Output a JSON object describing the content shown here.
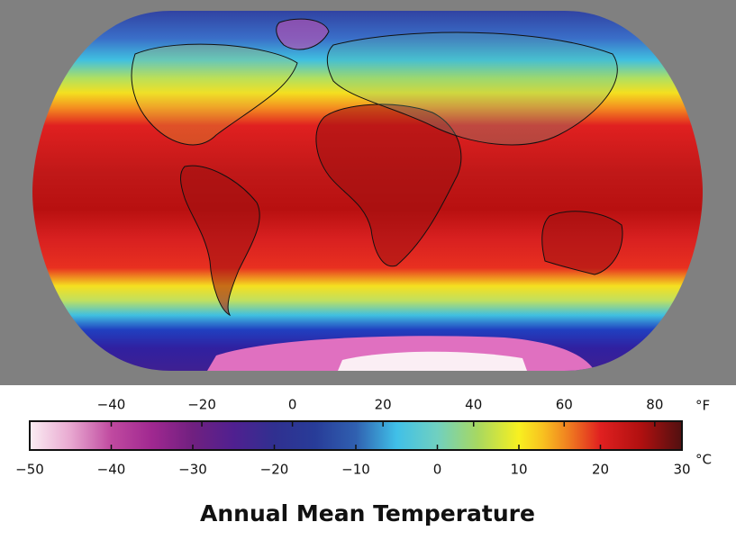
{
  "title": "Annual Mean Temperature",
  "colorbar": {
    "fahrenheit": {
      "unit": "°F",
      "lim": [
        -58,
        86
      ],
      "ticks": [
        {
          "value": -40,
          "label": "−40"
        },
        {
          "value": -20,
          "label": "−20"
        },
        0,
        20,
        40,
        60,
        80
      ]
    },
    "celsius": {
      "unit": "°C",
      "lim": [
        -50,
        30
      ],
      "ticks": [
        {
          "value": -50,
          "label": "−50"
        },
        {
          "value": -40,
          "label": "−40"
        },
        {
          "value": -30,
          "label": "−30"
        },
        {
          "value": -20,
          "label": "−20"
        },
        {
          "value": -10,
          "label": "−10"
        },
        0,
        10,
        20,
        30
      ]
    },
    "colors": [
      {
        "value": -50,
        "color": "#fbeef4"
      },
      {
        "value": -45,
        "color": "#e8a8d0"
      },
      {
        "value": -40,
        "color": "#c04aa0"
      },
      {
        "value": -35,
        "color": "#a02890"
      },
      {
        "value": -30,
        "color": "#702080"
      },
      {
        "value": -25,
        "color": "#502090"
      },
      {
        "value": -20,
        "color": "#303090"
      },
      {
        "value": -15,
        "color": "#283c98"
      },
      {
        "value": -10,
        "color": "#3060b0"
      },
      {
        "value": -5,
        "color": "#40c0e8"
      },
      {
        "value": 0,
        "color": "#70d0c0"
      },
      {
        "value": 5,
        "color": "#a8d860"
      },
      {
        "value": 10,
        "color": "#f8f020"
      },
      {
        "value": 13,
        "color": "#f8c020"
      },
      {
        "value": 16,
        "color": "#f08020"
      },
      {
        "value": 20,
        "color": "#e02020"
      },
      {
        "value": 25,
        "color": "#b01010"
      },
      {
        "value": 30,
        "color": "#501010"
      }
    ]
  }
}
